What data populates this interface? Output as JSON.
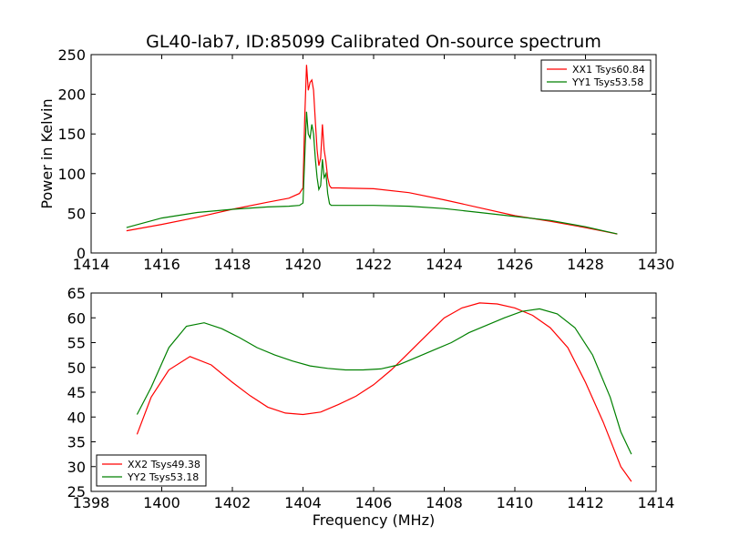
{
  "chart_data": [
    {
      "type": "line",
      "title": "GL40-lab7, ID:85099 Calibrated On-source spectrum",
      "xlabel": "",
      "ylabel": "Power in Kelvin",
      "xlim": [
        1414,
        1430
      ],
      "ylim": [
        0,
        250
      ],
      "xticks": [
        1414,
        1416,
        1418,
        1420,
        1422,
        1424,
        1426,
        1428,
        1430
      ],
      "yticks": [
        0,
        50,
        100,
        150,
        200,
        250
      ],
      "grid": false,
      "legend": "top-right",
      "series": [
        {
          "name": "XX1 Tsys60.84",
          "color": "#ff0000",
          "points": [
            [
              1415.0,
              28
            ],
            [
              1416.0,
              36
            ],
            [
              1417.0,
              45
            ],
            [
              1418.0,
              55
            ],
            [
              1419.0,
              64
            ],
            [
              1419.6,
              69
            ],
            [
              1419.9,
              75
            ],
            [
              1420.0,
              82
            ],
            [
              1420.05,
              170
            ],
            [
              1420.1,
              237
            ],
            [
              1420.15,
              205
            ],
            [
              1420.2,
              215
            ],
            [
              1420.25,
              218
            ],
            [
              1420.3,
              205
            ],
            [
              1420.35,
              165
            ],
            [
              1420.4,
              130
            ],
            [
              1420.45,
              110
            ],
            [
              1420.5,
              120
            ],
            [
              1420.55,
              162
            ],
            [
              1420.6,
              130
            ],
            [
              1420.65,
              115
            ],
            [
              1420.7,
              95
            ],
            [
              1420.75,
              85
            ],
            [
              1420.8,
              82
            ],
            [
              1421.0,
              82
            ],
            [
              1422.0,
              81
            ],
            [
              1423.0,
              76
            ],
            [
              1424.0,
              67
            ],
            [
              1425.0,
              57
            ],
            [
              1426.0,
              47
            ],
            [
              1427.0,
              40
            ],
            [
              1428.0,
              32
            ],
            [
              1428.9,
              24
            ]
          ]
        },
        {
          "name": "YY1 Tsys53.58",
          "color": "#008000",
          "points": [
            [
              1415.0,
              32
            ],
            [
              1416.0,
              44
            ],
            [
              1417.0,
              51
            ],
            [
              1418.0,
              55
            ],
            [
              1419.0,
              58
            ],
            [
              1419.6,
              59
            ],
            [
              1419.9,
              60
            ],
            [
              1420.0,
              63
            ],
            [
              1420.05,
              120
            ],
            [
              1420.1,
              178
            ],
            [
              1420.15,
              150
            ],
            [
              1420.2,
              145
            ],
            [
              1420.25,
              162
            ],
            [
              1420.3,
              150
            ],
            [
              1420.35,
              118
            ],
            [
              1420.4,
              95
            ],
            [
              1420.45,
              80
            ],
            [
              1420.5,
              85
            ],
            [
              1420.55,
              118
            ],
            [
              1420.6,
              95
            ],
            [
              1420.65,
              100
            ],
            [
              1420.7,
              75
            ],
            [
              1420.75,
              62
            ],
            [
              1420.8,
              60
            ],
            [
              1421.0,
              60
            ],
            [
              1422.0,
              60
            ],
            [
              1423.0,
              59
            ],
            [
              1424.0,
              56
            ],
            [
              1425.0,
              51
            ],
            [
              1426.0,
              46
            ],
            [
              1427.0,
              41
            ],
            [
              1428.0,
              33
            ],
            [
              1428.9,
              24
            ]
          ]
        }
      ]
    },
    {
      "type": "line",
      "title": "",
      "xlabel": "Frequency (MHz)",
      "ylabel": "",
      "xlim": [
        1398,
        1414
      ],
      "ylim": [
        25,
        65
      ],
      "xticks": [
        1398,
        1400,
        1402,
        1404,
        1406,
        1408,
        1410,
        1412,
        1414
      ],
      "yticks": [
        25,
        30,
        35,
        40,
        45,
        50,
        55,
        60,
        65
      ],
      "grid": false,
      "legend": "bottom-left",
      "series": [
        {
          "name": "XX2 Tsys49.38",
          "color": "#ff0000",
          "points": [
            [
              1399.3,
              36.5
            ],
            [
              1399.7,
              44
            ],
            [
              1400.2,
              49.5
            ],
            [
              1400.8,
              52.2
            ],
            [
              1401.4,
              50.5
            ],
            [
              1402.0,
              47
            ],
            [
              1402.5,
              44.3
            ],
            [
              1403.0,
              42
            ],
            [
              1403.5,
              40.8
            ],
            [
              1404.0,
              40.5
            ],
            [
              1404.5,
              41
            ],
            [
              1405.0,
              42.5
            ],
            [
              1405.5,
              44.2
            ],
            [
              1406.0,
              46.5
            ],
            [
              1406.5,
              49.5
            ],
            [
              1407.0,
              53
            ],
            [
              1407.5,
              56.5
            ],
            [
              1408.0,
              60
            ],
            [
              1408.5,
              62
            ],
            [
              1409.0,
              63
            ],
            [
              1409.5,
              62.8
            ],
            [
              1410.0,
              62
            ],
            [
              1410.5,
              60.5
            ],
            [
              1411.0,
              58
            ],
            [
              1411.5,
              54
            ],
            [
              1412.0,
              47
            ],
            [
              1412.5,
              39
            ],
            [
              1413.0,
              30
            ],
            [
              1413.3,
              27
            ]
          ]
        },
        {
          "name": "YY2 Tsys53.18",
          "color": "#008000",
          "points": [
            [
              1399.3,
              40.5
            ],
            [
              1399.7,
              46
            ],
            [
              1400.2,
              54
            ],
            [
              1400.7,
              58.3
            ],
            [
              1401.2,
              59
            ],
            [
              1401.7,
              57.8
            ],
            [
              1402.2,
              56
            ],
            [
              1402.7,
              54
            ],
            [
              1403.2,
              52.5
            ],
            [
              1403.7,
              51.3
            ],
            [
              1404.2,
              50.3
            ],
            [
              1404.7,
              49.8
            ],
            [
              1405.2,
              49.5
            ],
            [
              1405.7,
              49.5
            ],
            [
              1406.2,
              49.7
            ],
            [
              1406.7,
              50.5
            ],
            [
              1407.2,
              52
            ],
            [
              1407.7,
              53.5
            ],
            [
              1408.2,
              55
            ],
            [
              1408.7,
              57
            ],
            [
              1409.2,
              58.5
            ],
            [
              1409.7,
              60
            ],
            [
              1410.2,
              61.3
            ],
            [
              1410.7,
              61.8
            ],
            [
              1411.2,
              60.8
            ],
            [
              1411.7,
              58
            ],
            [
              1412.2,
              52.5
            ],
            [
              1412.7,
              44
            ],
            [
              1413.0,
              37
            ],
            [
              1413.3,
              32.5
            ]
          ]
        }
      ]
    }
  ]
}
